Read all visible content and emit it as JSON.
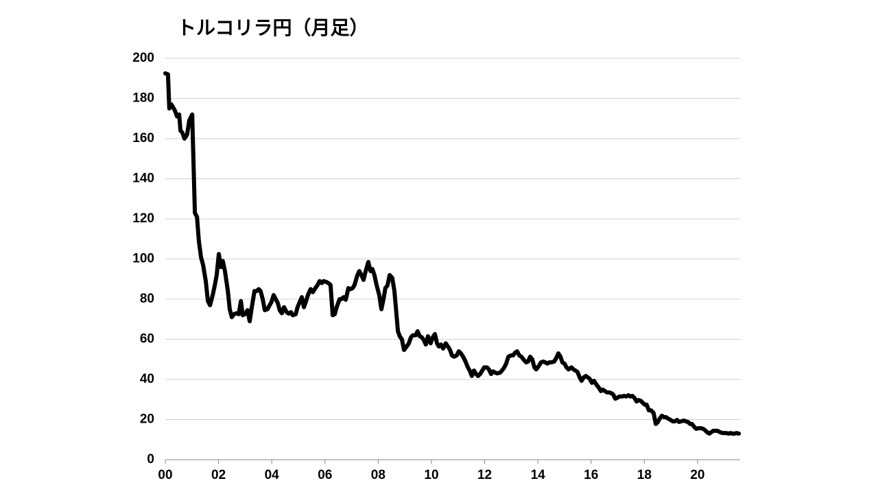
{
  "chart_data": {
    "type": "line",
    "title": "トルコリラ円（月足）",
    "x": [
      2000.0,
      2000.1,
      2000.15,
      2000.23,
      2000.36,
      2000.44,
      2000.52,
      2000.57,
      2000.64,
      2000.72,
      2000.82,
      2000.9,
      2001.01,
      2001.11,
      2001.19,
      2001.26,
      2001.34,
      2001.42,
      2001.52,
      2001.6,
      2001.68,
      2001.78,
      2001.86,
      2001.93,
      2002.01,
      2002.09,
      2002.16,
      2002.24,
      2002.35,
      2002.42,
      2002.5,
      2002.58,
      2002.68,
      2002.76,
      2002.84,
      2002.91,
      2002.99,
      2003.09,
      2003.17,
      2003.25,
      2003.35,
      2003.43,
      2003.51,
      2003.58,
      2003.66,
      2003.74,
      2003.84,
      2003.92,
      2003.99,
      2004.07,
      2004.15,
      2004.23,
      2004.3,
      2004.38,
      2004.46,
      2004.56,
      2004.64,
      2004.72,
      2004.79,
      2004.9,
      2004.97,
      2005.05,
      2005.13,
      2005.21,
      2005.28,
      2005.36,
      2005.46,
      2005.54,
      2005.64,
      2005.72,
      2005.8,
      2005.88,
      2005.95,
      2006.06,
      2006.13,
      2006.21,
      2006.29,
      2006.37,
      2006.44,
      2006.55,
      2006.62,
      2006.7,
      2006.78,
      2006.88,
      2006.96,
      2007.04,
      2007.11,
      2007.22,
      2007.29,
      2007.37,
      2007.45,
      2007.53,
      2007.63,
      2007.71,
      2007.78,
      2007.86,
      2007.94,
      2008.04,
      2008.12,
      2008.2,
      2008.27,
      2008.35,
      2008.43,
      2008.53,
      2008.61,
      2008.69,
      2008.74,
      2008.81,
      2008.89,
      2008.97,
      2009.07,
      2009.15,
      2009.23,
      2009.3,
      2009.41,
      2009.48,
      2009.56,
      2009.64,
      2009.72,
      2009.79,
      2009.87,
      2009.97,
      2010.05,
      2010.13,
      2010.21,
      2010.28,
      2010.36,
      2010.44,
      2010.54,
      2010.62,
      2010.7,
      2010.77,
      2010.85,
      2010.95,
      2011.03,
      2011.11,
      2011.19,
      2011.26,
      2011.37,
      2011.44,
      2011.52,
      2011.6,
      2011.68,
      2011.75,
      2011.83,
      2011.91,
      2011.98,
      2012.09,
      2012.16,
      2012.24,
      2012.32,
      2012.4,
      2012.47,
      2012.58,
      2012.65,
      2012.73,
      2012.81,
      2012.89,
      2012.99,
      2013.07,
      2013.14,
      2013.22,
      2013.3,
      2013.38,
      2013.48,
      2013.56,
      2013.63,
      2013.71,
      2013.79,
      2013.87,
      2013.94,
      2014.05,
      2014.12,
      2014.2,
      2014.28,
      2014.36,
      2014.43,
      2014.51,
      2014.61,
      2014.69,
      2014.77,
      2014.85,
      2014.92,
      2015.0,
      2015.08,
      2015.15,
      2015.26,
      2015.34,
      2015.41,
      2015.49,
      2015.57,
      2015.64,
      2015.72,
      2015.8,
      2015.88,
      2015.95,
      2016.03,
      2016.11,
      2016.19,
      2016.29,
      2016.37,
      2016.44,
      2016.52,
      2016.6,
      2016.68,
      2016.75,
      2016.83,
      2016.91,
      2016.98,
      2017.06,
      2017.16,
      2017.24,
      2017.32,
      2017.4,
      2017.47,
      2017.55,
      2017.63,
      2017.71,
      2017.78,
      2017.86,
      2017.94,
      2018.02,
      2018.09,
      2018.17,
      2018.25,
      2018.35,
      2018.43,
      2018.51,
      2018.58,
      2018.66,
      2018.74,
      2018.81,
      2018.89,
      2018.99,
      2019.07,
      2019.15,
      2019.23,
      2019.3,
      2019.38,
      2019.48,
      2019.56,
      2019.64,
      2019.72,
      2019.79,
      2019.87,
      2019.95,
      2020.03,
      2020.13,
      2020.21,
      2020.28,
      2020.36,
      2020.44,
      2020.52,
      2020.59,
      2020.67,
      2020.75,
      2020.85,
      2020.93,
      2021.01,
      2021.08,
      2021.16,
      2021.24,
      2021.31,
      2021.39,
      2021.47,
      2021.55
    ],
    "series": [
      {
        "color": "#000000",
        "values": [
          192.5,
          192,
          175,
          177,
          174,
          171,
          172,
          164,
          163,
          160,
          162,
          169,
          172,
          123,
          121,
          109,
          101,
          97,
          89,
          79,
          77,
          82,
          87,
          92,
          102.5,
          96,
          99,
          94,
          84,
          75,
          71,
          72.5,
          73,
          72.5,
          79,
          72,
          72.5,
          74.5,
          69,
          76,
          84,
          84,
          85,
          84,
          80,
          74.5,
          75,
          77,
          78.6,
          82,
          80,
          78,
          74.5,
          73,
          76,
          73.5,
          72.8,
          73.5,
          72,
          72.5,
          76,
          78.6,
          81,
          76,
          78.6,
          82,
          85,
          83.5,
          85.5,
          87,
          89,
          88,
          89,
          88.5,
          88,
          87,
          72,
          72.5,
          76,
          80,
          80,
          81,
          79.7,
          85.5,
          85,
          85.5,
          87,
          92,
          94,
          92,
          89.6,
          94,
          98.5,
          94,
          95,
          92,
          87,
          82,
          75,
          80,
          85.5,
          86.8,
          92,
          90.6,
          84,
          72,
          64,
          61.5,
          60,
          54.7,
          56.4,
          58,
          61,
          62,
          62,
          64,
          61.5,
          61,
          59.5,
          57.4,
          61.5,
          58,
          61,
          62.6,
          58,
          56.4,
          57.4,
          55.4,
          58,
          56.4,
          54.7,
          52,
          51.3,
          52,
          54,
          53,
          51.3,
          49.6,
          46,
          44.4,
          41.7,
          44.4,
          42.7,
          41.7,
          42.7,
          44.4,
          46,
          46,
          45,
          42.7,
          44,
          43.4,
          43,
          43.4,
          44.4,
          45.8,
          47.9,
          51.3,
          52,
          52,
          53.3,
          54,
          52,
          51.3,
          49.6,
          48.5,
          48.9,
          51.3,
          50,
          46,
          45,
          47,
          48.5,
          48.9,
          48.5,
          47.9,
          48.5,
          48.5,
          48.9,
          50.6,
          53,
          51.3,
          48.5,
          47.9,
          46,
          45,
          46,
          45,
          44.4,
          43.7,
          41,
          39.3,
          41,
          41.7,
          41,
          40.3,
          38.3,
          39.3,
          37.6,
          35.9,
          34.2,
          34.9,
          34.2,
          33.5,
          33.5,
          33.2,
          32.5,
          30.4,
          30.8,
          31.5,
          31.5,
          31.8,
          31.5,
          32.1,
          31.5,
          31.8,
          30.8,
          29,
          29.7,
          29.4,
          28.4,
          27.4,
          27.4,
          24.6,
          24.6,
          23.2,
          17.8,
          18.8,
          20.5,
          21.9,
          21.2,
          21.2,
          20.5,
          19.8,
          19.1,
          19.1,
          19.8,
          18.8,
          19.1,
          19.5,
          19.1,
          18.8,
          17.8,
          17.8,
          16.4,
          15.4,
          15.7,
          15.7,
          15.4,
          14.7,
          13.7,
          13,
          13.7,
          14.4,
          14.4,
          14.4,
          13.7,
          13.3,
          13.3,
          13.3,
          13,
          13.3,
          13,
          13,
          13.3,
          13
        ]
      }
    ],
    "xlim": [
      2000,
      2021.6
    ],
    "xticks": [
      {
        "value": 2000,
        "label": "00"
      },
      {
        "value": 2002,
        "label": "02"
      },
      {
        "value": 2004,
        "label": "04"
      },
      {
        "value": 2006,
        "label": "06"
      },
      {
        "value": 2008,
        "label": "08"
      },
      {
        "value": 2010,
        "label": "10"
      },
      {
        "value": 2012,
        "label": "12"
      },
      {
        "value": 2014,
        "label": "14"
      },
      {
        "value": 2016,
        "label": "16"
      },
      {
        "value": 2018,
        "label": "18"
      },
      {
        "value": 2020,
        "label": "20"
      }
    ],
    "ylim": [
      0,
      200
    ],
    "yticks": [
      0,
      20,
      40,
      60,
      80,
      100,
      120,
      140,
      160,
      180,
      200
    ],
    "grid": true
  }
}
